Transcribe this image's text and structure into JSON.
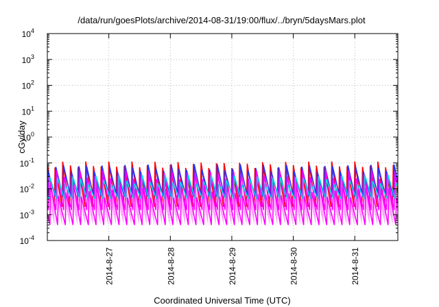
{
  "chart_data": {
    "type": "line",
    "title": "/data/run/goesPlots/archive/2014-08-31/19:00/flux/../bryn/5daysMars.plot",
    "xlabel": "Coordinated Universal Time (UTC)",
    "ylabel": "cGy/day",
    "yscale": "log",
    "ylim": [
      0.0001,
      10000
    ],
    "y_ticks": [
      {
        "base": "10",
        "exp": "-4"
      },
      {
        "base": "10",
        "exp": "-3"
      },
      {
        "base": "10",
        "exp": "-2"
      },
      {
        "base": "10",
        "exp": "-1"
      },
      {
        "base": "10",
        "exp": "0"
      },
      {
        "base": "10",
        "exp": "1"
      },
      {
        "base": "10",
        "exp": "2"
      },
      {
        "base": "10",
        "exp": "3"
      },
      {
        "base": "10",
        "exp": "4"
      }
    ],
    "xlim": [
      0,
      5.7
    ],
    "x_ticks": [
      {
        "label": "2014-8-27",
        "x": 1
      },
      {
        "label": "2014-8-28",
        "x": 2
      },
      {
        "label": "2014-8-29",
        "x": 3
      },
      {
        "label": "2014-8-30",
        "x": 4
      },
      {
        "label": "2014-8-31",
        "x": 5
      }
    ],
    "grid": true,
    "approx_period_days": 0.125,
    "series": [
      {
        "color": "#ff0000",
        "peak": 0.085,
        "trough": 0.002
      },
      {
        "color": "#2233ff",
        "peak": 0.065,
        "trough": 0.005
      },
      {
        "color": "#ff00ff",
        "peak": 0.035,
        "trough": 0.0015
      },
      {
        "color": "#00dddd",
        "peak": 0.022,
        "trough": 0.004
      },
      {
        "color": "#ff00ff",
        "peak": 0.008,
        "trough": 0.0004
      }
    ]
  }
}
